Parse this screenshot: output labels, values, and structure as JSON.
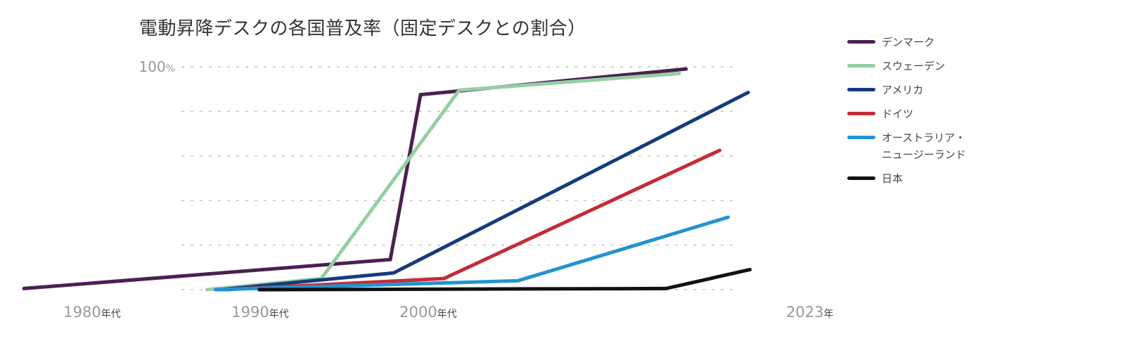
{
  "title": "電動昇降デスクの各国普及率（固定デスクとの割合）",
  "chart_data": {
    "type": "line",
    "title": "電動昇降デスクの各国普及率（固定デスクとの割合）",
    "xlabel": "",
    "ylabel": "",
    "ylim": [
      0,
      100
    ],
    "grid": true,
    "grid_values": [
      0,
      20,
      40,
      60,
      80,
      100
    ],
    "y_tick_labels": [
      {
        "value": 100,
        "label": "100%"
      }
    ],
    "xlim": [
      1978,
      2027
    ],
    "x_tick_labels": [
      {
        "x": 1980,
        "main": "1980",
        "suffix": "年代"
      },
      {
        "x": 1990,
        "main": "1990",
        "suffix": "年代"
      },
      {
        "x": 2000,
        "main": "2000",
        "suffix": "年代"
      },
      {
        "x": 2023,
        "main": "2023",
        "suffix": "年"
      }
    ],
    "legend_position": "right",
    "series": [
      {
        "name": "デンマーク",
        "color": "#4a2050",
        "points": [
          [
            1978.4,
            0.5
          ],
          [
            2000.2,
            13.5
          ],
          [
            2002.0,
            87.5
          ],
          [
            2017.8,
            99
          ]
        ]
      },
      {
        "name": "スウェーデン",
        "color": "#94cfa2",
        "points": [
          [
            1989.3,
            0
          ],
          [
            1996.1,
            5
          ],
          [
            2004.3,
            89.5
          ],
          [
            2017.4,
            97
          ]
        ]
      },
      {
        "name": "アメリカ",
        "color": "#153b7e",
        "points": [
          [
            1990.1,
            0
          ],
          [
            2000.4,
            7.5
          ],
          [
            2021.5,
            88.5
          ]
        ]
      },
      {
        "name": "ドイツ",
        "color": "#c42c36",
        "points": [
          [
            1990.4,
            0
          ],
          [
            2003.4,
            5
          ],
          [
            2019.8,
            62.5
          ]
        ]
      },
      {
        "name": "オーストラリア・\nニュージーランド",
        "color": "#2293cf",
        "points": [
          [
            1989.8,
            0
          ],
          [
            2007.8,
            4
          ],
          [
            2020.3,
            32.5
          ]
        ]
      },
      {
        "name": "日本",
        "color": "#111111",
        "points": [
          [
            1992.4,
            0
          ],
          [
            2016.6,
            0.5
          ],
          [
            2021.6,
            9
          ]
        ]
      }
    ]
  }
}
